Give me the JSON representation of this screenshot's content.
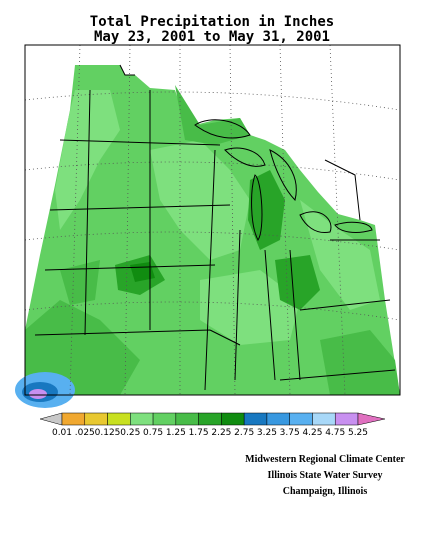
{
  "title": [
    "Total Precipitation in Inches",
    "May 23, 2001 to May 31, 2001"
  ],
  "legend": {
    "labels": [
      "0.01",
      ".025",
      "0.125",
      "0.25",
      "0.75",
      "1.25",
      "1.75",
      "2.25",
      "2.75",
      "3.25",
      "3.75",
      "4.25",
      "4.75",
      "5.25"
    ],
    "colors": [
      "#c8c8c8",
      "#f0a830",
      "#e8c830",
      "#c8e020",
      "#7ee07e",
      "#62d062",
      "#48bc48",
      "#28a428",
      "#108c10",
      "#1878c0",
      "#3898e0",
      "#58b0f0",
      "#a8d8f8",
      "#c890f0",
      "#e070c0"
    ]
  },
  "credits": [
    "Midwestern Regional Climate Center",
    "Illinois State Water Survey",
    "Champaign, Illinois"
  ]
}
